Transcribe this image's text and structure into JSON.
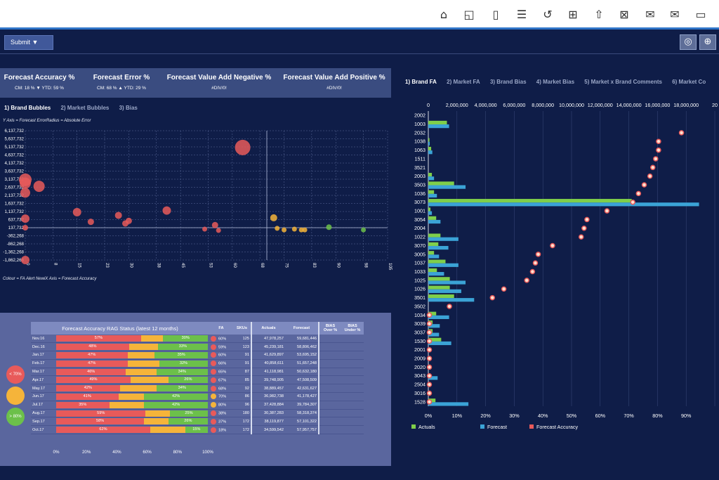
{
  "toolbar": {
    "icons": [
      "home-icon",
      "chart-edit-icon",
      "bookmark-icon",
      "filter-icon",
      "refresh-icon",
      "present-icon",
      "share-icon",
      "excel-icon",
      "mail-add-icon",
      "mail-icon",
      "window-icon"
    ]
  },
  "filter": {
    "submit_label": "Submit ▼"
  },
  "kpis": [
    {
      "title": "Forecast Accuracy %",
      "sub": "CM: 18 % ▼ YTD: 59 %"
    },
    {
      "title": "Forecast Error %",
      "sub": "CM: 68 % ▲ YTD: 29 %"
    },
    {
      "title": "Forecast Value Add Negative %",
      "sub": "#DIV/0!"
    },
    {
      "title": "Forecast Value Add Positive %",
      "sub": "#DIV/0!"
    }
  ],
  "left_tabs": [
    "1) Brand Bubbles",
    "2) Market Bubbles",
    "3) Bias"
  ],
  "right_tabs": [
    "1) Brand FA",
    "2) Market FA",
    "3) Brand Bias",
    "4) Market Bias",
    "5) Market x Brand Comments",
    "6) Market Co"
  ],
  "notes": {
    "bubble_top": "Y Axis = Forecast ErrorRadius = Absolute Error",
    "bubble_bottom": "Colour = FA Alert NewiX Axis = Forecast Accuracy"
  },
  "colors": {
    "red": "#e85a5a",
    "amber": "#f5b43a",
    "green": "#6cc04a",
    "actuals": "#7fcf4a",
    "forecast": "#3ba3d6",
    "accuracy": "#e85a5a"
  },
  "chart_data": [
    {
      "type": "scatter",
      "x_ticks": [
        "0",
        "8",
        "15",
        "23",
        "30",
        "38",
        "45",
        "53",
        "60",
        "68",
        "75",
        "83",
        "90",
        "98",
        "105"
      ],
      "x_tick_values": [
        0,
        8,
        15,
        23,
        30,
        38,
        45,
        53,
        60,
        68,
        75,
        83,
        90,
        98,
        105
      ],
      "y_ticks": [
        "6,137,732",
        "5,637,732",
        "5,137,732",
        "4,637,732",
        "4,137,732",
        "3,637,732",
        "3,137,732",
        "2,637,732",
        "2,137,732",
        "1,637,732",
        "1,137,732",
        "637,732",
        "137,732",
        "-362,268",
        "-862,268",
        "-1,362,268",
        "-1,862,268"
      ],
      "y_tick_values": [
        6137732,
        5637732,
        5137732,
        4637732,
        4137732,
        3637732,
        3137732,
        2637732,
        2137732,
        1637732,
        1137732,
        637732,
        137732,
        -362268,
        -862268,
        -1362268,
        -1862268
      ],
      "xlim": [
        0,
        105
      ],
      "ylim": [
        -1862268,
        6137732
      ],
      "points": [
        {
          "x": 0,
          "y": 3100000,
          "r": 9,
          "color": "red"
        },
        {
          "x": 0,
          "y": 2900000,
          "r": 8,
          "color": "red"
        },
        {
          "x": 0,
          "y": 2300000,
          "r": 7,
          "color": "red"
        },
        {
          "x": 0,
          "y": -1862268,
          "r": 6,
          "color": "red"
        },
        {
          "x": 0,
          "y": 137732,
          "r": 4,
          "color": "red"
        },
        {
          "x": 0,
          "y": 700000,
          "r": 6,
          "color": "red"
        },
        {
          "x": 4,
          "y": 2700000,
          "r": 8,
          "color": "red"
        },
        {
          "x": 15,
          "y": 1100000,
          "r": 6,
          "color": "red"
        },
        {
          "x": 19,
          "y": 500000,
          "r": 4.5,
          "color": "red"
        },
        {
          "x": 27,
          "y": 900000,
          "r": 5,
          "color": "red"
        },
        {
          "x": 29,
          "y": 400000,
          "r": 4.5,
          "color": "red"
        },
        {
          "x": 30,
          "y": 560000,
          "r": 4.5,
          "color": "red"
        },
        {
          "x": 41,
          "y": 1200000,
          "r": 6,
          "color": "red"
        },
        {
          "x": 52,
          "y": 50000,
          "r": 3.5,
          "color": "red"
        },
        {
          "x": 55,
          "y": 300000,
          "r": 4.5,
          "color": "red"
        },
        {
          "x": 56,
          "y": -30000,
          "r": 3.5,
          "color": "red"
        },
        {
          "x": 63,
          "y": 5100000,
          "r": 11,
          "color": "red"
        },
        {
          "x": 72,
          "y": 750000,
          "r": 5,
          "color": "amber"
        },
        {
          "x": 73,
          "y": 100000,
          "r": 3.5,
          "color": "amber"
        },
        {
          "x": 75,
          "y": 0,
          "r": 3.5,
          "color": "amber"
        },
        {
          "x": 78,
          "y": 50000,
          "r": 3.5,
          "color": "amber"
        },
        {
          "x": 80,
          "y": 0,
          "r": 3.5,
          "color": "amber"
        },
        {
          "x": 81,
          "y": 0,
          "r": 3.5,
          "color": "amber"
        },
        {
          "x": 88,
          "y": 170000,
          "r": 4,
          "color": "green"
        },
        {
          "x": 98,
          "y": 0,
          "r": 3.5,
          "color": "green"
        }
      ]
    },
    {
      "type": "bar",
      "orientation": "horizontal",
      "categories": [
        "2002",
        "1003",
        "2032",
        "1038",
        "1063",
        "1511",
        "3521",
        "2003",
        "3503",
        "1036",
        "3073",
        "1001",
        "3054",
        "2004",
        "1022",
        "3070",
        "3005",
        "1037",
        "1033",
        "1025",
        "1026",
        "3501",
        "3502",
        "1034",
        "3039",
        "3037",
        "1530",
        "2001",
        "2009",
        "2020",
        "3043",
        "2504",
        "3016",
        "1528"
      ],
      "x_top_ticks": [
        "0",
        "2,000,000",
        "4,000,000",
        "6,000,000",
        "8,000,000",
        "10,000,000",
        "12,000,000",
        "14,000,000",
        "16,000,000",
        "18,000,000",
        "20"
      ],
      "x_top_values": [
        0,
        2000000,
        4000000,
        6000000,
        8000000,
        10000000,
        12000000,
        14000000,
        16000000,
        18000000,
        20000000
      ],
      "x_bottom_ticks": [
        "0%",
        "10%",
        "20%",
        "30%",
        "40%",
        "50%",
        "60%",
        "70%",
        "80%",
        "90%"
      ],
      "x_bottom_values": [
        0,
        10,
        20,
        30,
        40,
        50,
        60,
        70,
        80,
        90
      ],
      "xlim_values": [
        0,
        20000000
      ],
      "xlim_percent": [
        0,
        100
      ],
      "series": [
        {
          "name": "Actuals",
          "values": [
            0,
            1300000,
            0,
            80000,
            200000,
            0,
            0,
            250000,
            1800000,
            400000,
            14200000,
            150000,
            550000,
            0,
            850000,
            700000,
            400000,
            1200000,
            600000,
            1500000,
            1500000,
            1800000,
            0,
            550000,
            300000,
            300000,
            900000,
            0,
            0,
            0,
            0,
            0,
            0,
            500000
          ]
        },
        {
          "name": "Forecast",
          "values": [
            0,
            1450000,
            0,
            100000,
            280000,
            0,
            0,
            400000,
            2600000,
            600000,
            18900000,
            250000,
            850000,
            0,
            2100000,
            1400000,
            750000,
            2100000,
            1100000,
            2600000,
            2300000,
            3200000,
            0,
            1450000,
            800000,
            750000,
            1600000,
            0,
            0,
            0,
            650000,
            0,
            0,
            2800000
          ]
        },
        {
          "name": "Forecast Accuracy",
          "values": [
            null,
            null,
            88,
            80,
            80,
            79,
            78,
            77,
            75,
            73,
            71,
            62,
            55,
            54,
            53,
            43,
            38,
            37,
            36,
            34,
            26,
            22,
            7,
            0,
            0,
            0,
            0,
            0,
            0,
            0,
            0,
            0,
            0,
            0
          ]
        }
      ],
      "legend": [
        "Actuals",
        "Forecast",
        "Forecast Accuracy"
      ],
      "legend_position": "bottom-left"
    },
    {
      "type": "table",
      "title": "Forecast Accuracy RAG Status (latest 12 months)",
      "columns": [
        "FA",
        "SKUs",
        "Actuals",
        "Forecast",
        "BIAS Over %",
        "BIAS Under %"
      ],
      "x_ticks": [
        "0%",
        "20%",
        "40%",
        "60%",
        "80%",
        "100%"
      ],
      "rows": [
        {
          "month": "Nov.16",
          "red": 57,
          "amber": 15,
          "green": 30,
          "red_label": "57%",
          "green_label": "30%",
          "fa_color": "red",
          "fa": "60%",
          "skus": "125",
          "actuals": "47,978,257",
          "forecast": "59,681,446"
        },
        {
          "month": "Dec.16",
          "red": 48,
          "amber": 19,
          "green": 33,
          "red_label": "48%",
          "green_label": "33%",
          "fa_color": "red",
          "fa": "59%",
          "skus": "123",
          "actuals": "45,239,181",
          "forecast": "58,806,462"
        },
        {
          "month": "Jan.17",
          "red": 47,
          "amber": 18,
          "green": 35,
          "red_label": "47%",
          "green_label": "35%",
          "fa_color": "red",
          "fa": "60%",
          "skus": "91",
          "actuals": "41,629,897",
          "forecast": "53,695,152"
        },
        {
          "month": "Feb.17",
          "red": 47,
          "amber": 21,
          "green": 32,
          "red_label": "47%",
          "green_label": "32%",
          "fa_color": "red",
          "fa": "66%",
          "skus": "91",
          "actuals": "40,858,611",
          "forecast": "51,657,248"
        },
        {
          "month": "Mar.17",
          "red": 46,
          "amber": 20,
          "green": 34,
          "red_label": "46%",
          "green_label": "34%",
          "fa_color": "red",
          "fa": "65%",
          "skus": "87",
          "actuals": "41,118,981",
          "forecast": "50,632,180"
        },
        {
          "month": "Apr.17",
          "red": 49,
          "amber": 25,
          "green": 26,
          "red_label": "49%",
          "green_label": "26%",
          "fa_color": "red",
          "fa": "67%",
          "skus": "85",
          "actuals": "39,748,905",
          "forecast": "47,508,509"
        },
        {
          "month": "May.17",
          "red": 42,
          "amber": 24,
          "green": 34,
          "red_label": "42%",
          "green_label": "34%",
          "fa_color": "red",
          "fa": "68%",
          "skus": "92",
          "actuals": "38,889,457",
          "forecast": "42,631,627"
        },
        {
          "month": "Jun.17",
          "red": 41,
          "amber": 17,
          "green": 42,
          "red_label": "41%",
          "green_label": "42%",
          "fa_color": "amber",
          "fa": "70%",
          "skus": "86",
          "actuals": "36,982,738",
          "forecast": "41,178,427"
        },
        {
          "month": "Jul.17",
          "red": 35,
          "amber": 23,
          "green": 42,
          "red_label": "35%",
          "green_label": "42%",
          "fa_color": "amber",
          "fa": "80%",
          "skus": "96",
          "actuals": "37,428,884",
          "forecast": "39,784,307"
        },
        {
          "month": "Aug.17",
          "red": 59,
          "amber": 16,
          "green": 25,
          "red_label": "59%",
          "green_label": "25%",
          "fa_color": "red",
          "fa": "38%",
          "skus": "180",
          "actuals": "30,387,283",
          "forecast": "58,318,374"
        },
        {
          "month": "Sep.17",
          "red": 58,
          "amber": 16,
          "green": 26,
          "red_label": "58%",
          "green_label": "26%",
          "fa_color": "red",
          "fa": "37%",
          "skus": "172",
          "actuals": "38,119,877",
          "forecast": "57,101,322"
        },
        {
          "month": "Oct.17",
          "red": 62,
          "amber": 23,
          "green": 15,
          "red_label": "62%",
          "green_label": "15%",
          "fa_color": "red",
          "fa": "18%",
          "skus": "172",
          "actuals": "34,599,542",
          "forecast": "57,957,757"
        }
      ]
    }
  ],
  "rag_legend": [
    {
      "label": "< 70%",
      "color": "red"
    },
    {
      "label": "",
      "color": "amber"
    },
    {
      "label": "> 80%",
      "color": "green"
    }
  ]
}
